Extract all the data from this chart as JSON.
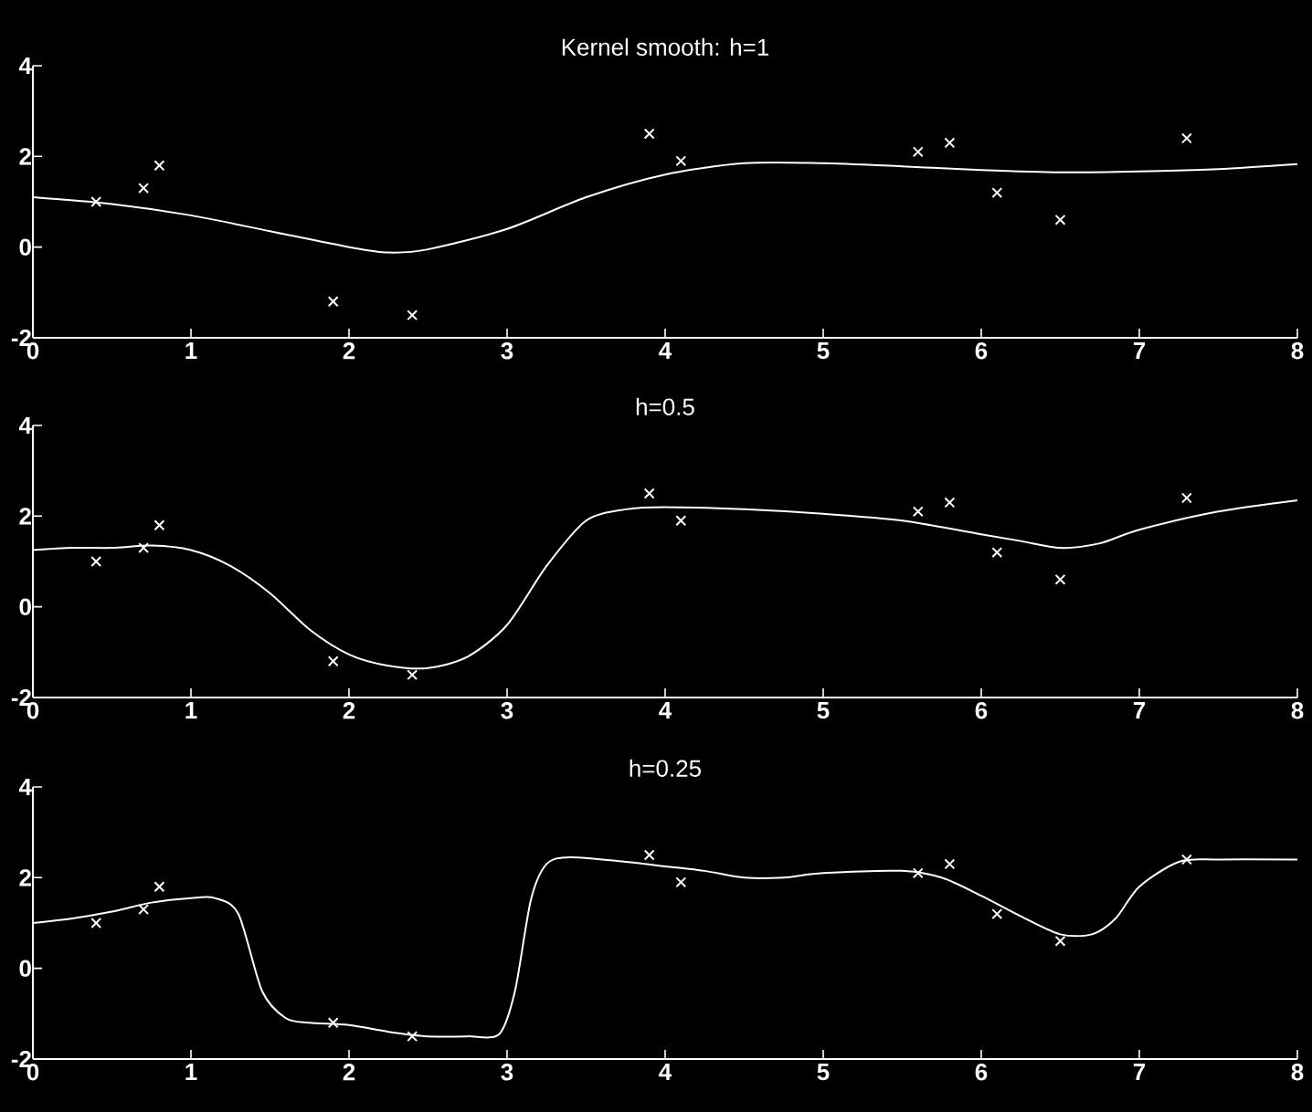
{
  "chart_data": [
    {
      "type": "line",
      "title": "Kernel smooth: h=1",
      "xlim": [
        0,
        8
      ],
      "ylim": [
        -2,
        4
      ],
      "xticks": [
        0,
        1,
        2,
        3,
        4,
        5,
        6,
        7,
        8
      ],
      "yticks": [
        -2,
        0,
        2,
        4
      ],
      "series": [
        {
          "type": "scatter",
          "marker": "cross",
          "color": "#ffffff",
          "x": [
            0.4,
            0.7,
            0.8,
            1.9,
            2.4,
            3.9,
            4.1,
            5.6,
            5.8,
            6.1,
            6.5,
            7.3
          ],
          "values": [
            1.0,
            1.3,
            1.8,
            -1.2,
            -1.5,
            2.5,
            1.9,
            2.1,
            2.3,
            1.2,
            0.6,
            2.4
          ]
        },
        {
          "color": "#ffffff",
          "x": [
            0,
            0.5,
            1,
            1.5,
            2,
            2.25,
            2.5,
            3,
            3.5,
            4,
            4.5,
            5,
            5.5,
            6,
            6.5,
            7,
            7.5,
            8
          ],
          "values": [
            1.1,
            0.95,
            0.7,
            0.35,
            0.0,
            -0.12,
            -0.05,
            0.4,
            1.1,
            1.6,
            1.85,
            1.85,
            1.78,
            1.7,
            1.65,
            1.67,
            1.72,
            1.83
          ]
        }
      ]
    },
    {
      "type": "line",
      "title": "h=0.5",
      "xlim": [
        0,
        8
      ],
      "ylim": [
        -2,
        4
      ],
      "xticks": [
        0,
        1,
        2,
        3,
        4,
        5,
        6,
        7,
        8
      ],
      "yticks": [
        -2,
        0,
        2,
        4
      ],
      "series": [
        {
          "type": "scatter",
          "marker": "cross",
          "color": "#ffffff",
          "x": [
            0.4,
            0.7,
            0.8,
            1.9,
            2.4,
            3.9,
            4.1,
            5.6,
            5.8,
            6.1,
            6.5,
            7.3
          ],
          "values": [
            1.0,
            1.3,
            1.8,
            -1.2,
            -1.5,
            2.5,
            1.9,
            2.1,
            2.3,
            1.2,
            0.6,
            2.4
          ]
        },
        {
          "color": "#ffffff",
          "x": [
            0,
            0.25,
            0.5,
            0.75,
            1,
            1.25,
            1.5,
            1.75,
            2,
            2.25,
            2.5,
            2.75,
            3,
            3.25,
            3.5,
            3.75,
            4,
            4.5,
            5,
            5.5,
            6,
            6.25,
            6.5,
            6.75,
            7,
            7.5,
            8
          ],
          "values": [
            1.25,
            1.3,
            1.3,
            1.35,
            1.25,
            0.9,
            0.3,
            -0.5,
            -1.05,
            -1.3,
            -1.35,
            -1.1,
            -0.4,
            0.9,
            1.9,
            2.15,
            2.2,
            2.15,
            2.05,
            1.9,
            1.6,
            1.45,
            1.3,
            1.4,
            1.7,
            2.1,
            2.35
          ]
        }
      ]
    },
    {
      "type": "line",
      "title": "h=0.25",
      "xlim": [
        0,
        8
      ],
      "ylim": [
        -2,
        4
      ],
      "xticks": [
        0,
        1,
        2,
        3,
        4,
        5,
        6,
        7,
        8
      ],
      "yticks": [
        -2,
        0,
        2,
        4
      ],
      "series": [
        {
          "type": "scatter",
          "marker": "cross",
          "color": "#ffffff",
          "x": [
            0.4,
            0.7,
            0.8,
            1.9,
            2.4,
            3.9,
            4.1,
            5.6,
            5.8,
            6.1,
            6.5,
            7.3
          ],
          "values": [
            1.0,
            1.3,
            1.8,
            -1.2,
            -1.5,
            2.5,
            1.9,
            2.1,
            2.3,
            1.2,
            0.6,
            2.4
          ]
        },
        {
          "color": "#ffffff",
          "x": [
            0,
            0.25,
            0.5,
            0.75,
            1,
            1.15,
            1.3,
            1.45,
            1.6,
            1.75,
            2,
            2.25,
            2.5,
            2.75,
            2.95,
            3.05,
            3.15,
            3.25,
            3.4,
            3.75,
            4,
            4.25,
            4.5,
            4.75,
            5,
            5.5,
            5.75,
            6,
            6.25,
            6.5,
            6.7,
            6.85,
            7,
            7.25,
            7.5,
            8
          ],
          "values": [
            1.0,
            1.1,
            1.25,
            1.45,
            1.55,
            1.55,
            1.2,
            -0.5,
            -1.1,
            -1.2,
            -1.25,
            -1.4,
            -1.5,
            -1.5,
            -1.45,
            -0.5,
            1.5,
            2.3,
            2.45,
            2.35,
            2.25,
            2.15,
            2.0,
            2.0,
            2.1,
            2.15,
            2.0,
            1.6,
            1.15,
            0.75,
            0.75,
            1.1,
            1.8,
            2.35,
            2.4,
            2.4
          ]
        }
      ]
    }
  ]
}
